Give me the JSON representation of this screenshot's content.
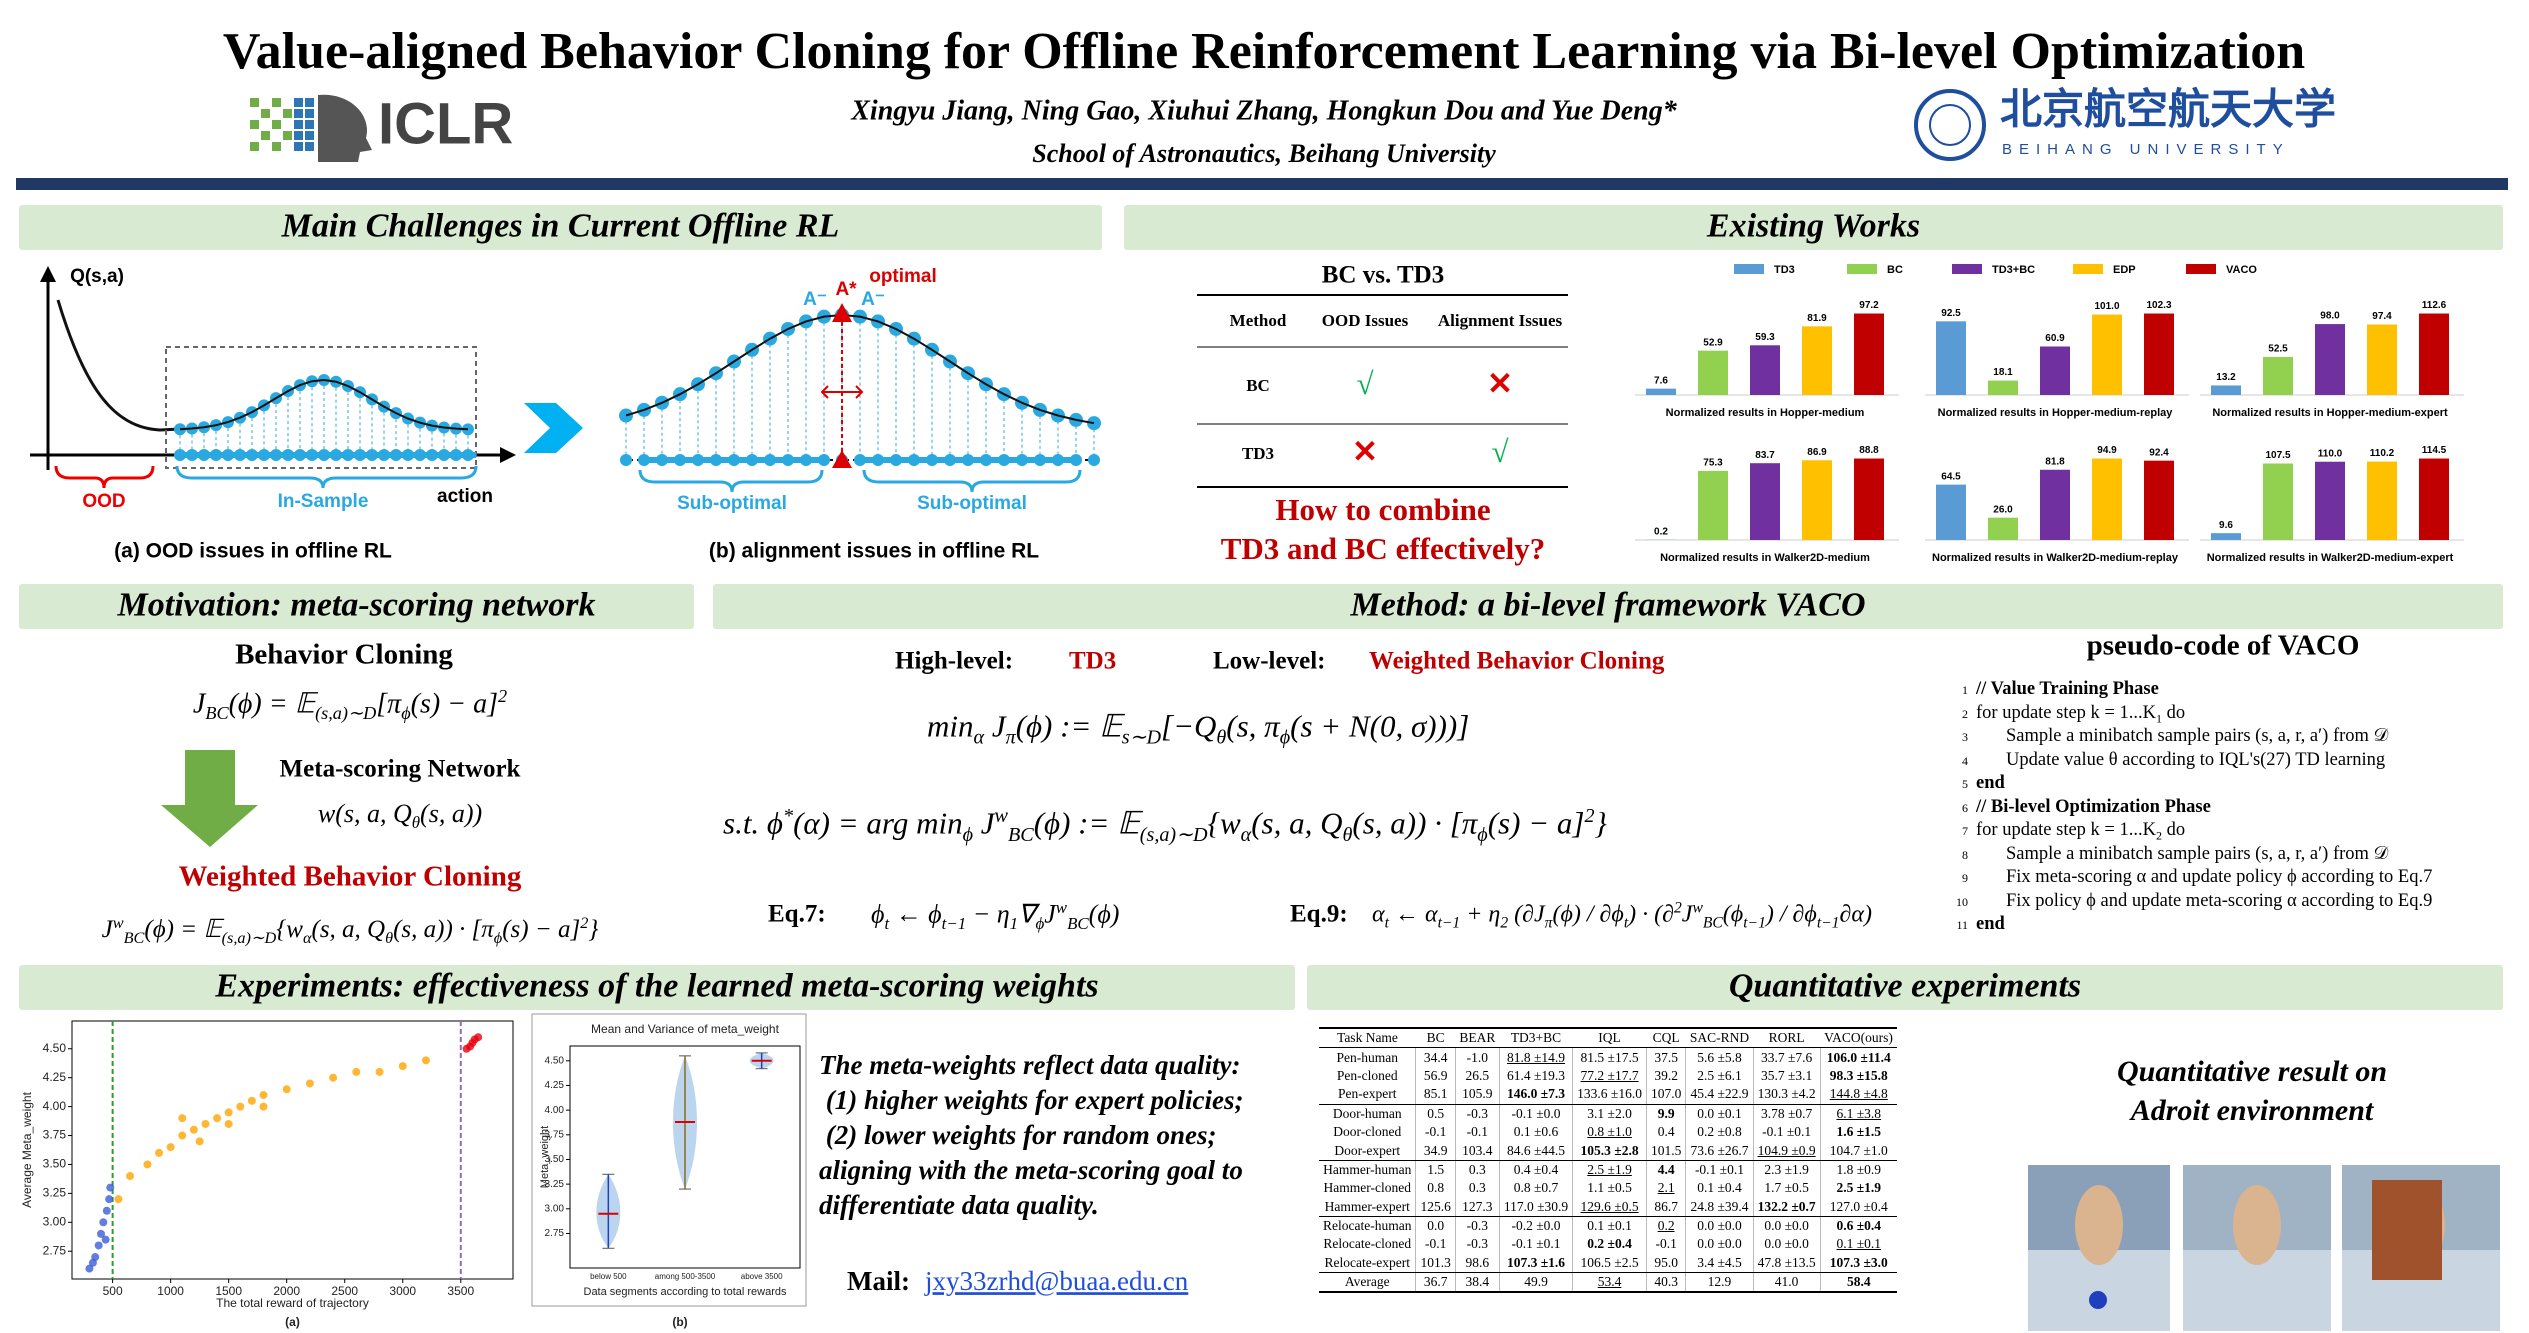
{
  "header": {
    "title": "Value-aligned Behavior Cloning for Offline Reinforcement Learning via Bi-level Optimization",
    "authors": "Xingyu Jiang, Ning Gao, Xiuhui Zhang, Hongkun Dou and Yue Deng*",
    "affiliation": "School of Astronautics, Beihang University",
    "conference": "ICLR",
    "university_cn": "北京航空航天大学",
    "university_en": "BEIHANG UNIVERSITY"
  },
  "challenges": {
    "title": "Main Challenges in Current Offline RL",
    "fig_a": {
      "y_label": "Q(s,a)",
      "x_label": "action",
      "ood": "OOD",
      "in_sample": "In-Sample",
      "caption": "(a) OOD issues in offline RL"
    },
    "fig_b": {
      "optimal": "optimal",
      "a_star": "A*",
      "a_minus": [
        "A⁻",
        "A⁻"
      ],
      "sub_optimal": [
        "Sub-optimal",
        "Sub-optimal"
      ],
      "caption": "(b) alignment issues in offline RL"
    }
  },
  "existing": {
    "title": "Existing Works",
    "table": {
      "title": "BC vs. TD3",
      "header": [
        "Method",
        "OOD Issues",
        "Alignment Issues"
      ],
      "rows": [
        [
          "BC",
          "√",
          "✕"
        ],
        [
          "TD3",
          "✕",
          "√"
        ]
      ]
    },
    "question": [
      "How to combine",
      "TD3 and BC effectively?"
    ],
    "legend": [
      {
        "name": "TD3",
        "color": "#5b9bd5"
      },
      {
        "name": "BC",
        "color": "#92d050"
      },
      {
        "name": "TD3+BC",
        "color": "#7030a0"
      },
      {
        "name": "EDP",
        "color": "#ffc000"
      },
      {
        "name": "VACO",
        "color": "#c00000"
      }
    ]
  },
  "motivation": {
    "title": "Motivation: meta-scoring network",
    "bc": "Behavior Cloning",
    "bc_formula": "J_{BC}(ϕ) = 𝔼_{(s,a)∼D}[π_{ϕ}(s) − a]^{2}",
    "network": "Meta-scoring Network",
    "network_formula": "w(s, a, Q_{θ}(s, a))",
    "wbc": "Weighted Behavior Cloning",
    "wbc_formula": "J^{w}_{BC}(ϕ) = 𝔼_{(s,a)∼D}{w_{α}(s, a, Q_{θ}(s, a)) · [π_{ϕ}(s) − a]^{2}}"
  },
  "method": {
    "title": "Method: a bi-level framework VACO",
    "high_label": "High-level:",
    "high": "TD3",
    "low_label": "Low-level:",
    "low": "Weighted Behavior Cloning",
    "upper": "min_{α}    J_{π}(ϕ) := 𝔼_{s∼D}[−Q_{θ}(s, π_{ϕ}(s + N(0, σ)))]",
    "lower": "s.t. ϕ^{*}(α) = arg min_{ϕ} J^{w}_{BC}(ϕ) := 𝔼_{(s,a)∼D}{w_{α}(s, a, Q_{θ}(s, a)) · [π_{ϕ}(s) − a]^{2}}",
    "eq7_label": "Eq.7:",
    "eq7": "ϕ_{t} ← ϕ_{t−1} − η_{1}∇_{ϕ}J^{w}_{BC}(ϕ)",
    "eq9_label": "Eq.9:",
    "eq9": "α_{t} ← α_{t−1} + η_{2} (∂J_{π}(ϕ) / ∂ϕ_{t}) · (∂^{2}J^{w}_{BC}(ϕ_{t−1}) / ∂ϕ_{t−1}∂α)",
    "code_title": "pseudo-code of VACO",
    "code": [
      {
        "num": 1,
        "text": "// Value Training Phase",
        "indent": 0,
        "bold": true
      },
      {
        "num": 2,
        "text": "for update step k = 1...K_{1} do",
        "indent": 0,
        "bold": false
      },
      {
        "num": 3,
        "text": "Sample a minibatch sample pairs (s, a, r, a′) from 𝒟",
        "indent": 1,
        "bold": false
      },
      {
        "num": 4,
        "text": "Update value θ according to IQL's(27) TD learning",
        "indent": 1,
        "bold": false
      },
      {
        "num": 5,
        "text": "end",
        "indent": 0,
        "bold": true
      },
      {
        "num": 6,
        "text": "// Bi-level Optimization Phase",
        "indent": 0,
        "bold": true
      },
      {
        "num": 7,
        "text": "for update step k = 1...K_{2} do",
        "indent": 0,
        "bold": false
      },
      {
        "num": 8,
        "text": "Sample a minibatch sample pairs (s, a, r, a′) from 𝒟",
        "indent": 1,
        "bold": false
      },
      {
        "num": 9,
        "text": "Fix meta-scoring α and update policy ϕ according to Eq.7",
        "indent": 1,
        "bold": false
      },
      {
        "num": 10,
        "text": "Fix policy ϕ and update meta-scoring α according to Eq.9",
        "indent": 1,
        "bold": false
      },
      {
        "num": 11,
        "text": "end",
        "indent": 0,
        "bold": true
      }
    ]
  },
  "experiments": {
    "title": "Experiments: effectiveness of the learned meta-scoring weights",
    "text": [
      "The meta-weights reflect data quality:",
      " (1) higher weights for expert policies;",
      " (2) lower weights for random ones;",
      "aligning with the meta-scoring goal to",
      "differentiate data quality."
    ],
    "mail_label": "Mail:",
    "mail": "jxy33zrhd@buaa.edu.cn",
    "captions": [
      "(a)",
      "(b)"
    ]
  },
  "quantitative": {
    "title": "Quantitative experiments",
    "note": [
      "Quantitative result on",
      "Adroit environment"
    ],
    "table": {
      "header": [
        "Task Name",
        "BC",
        "BEAR",
        "TD3+BC",
        "IQL",
        "CQL",
        "SAC-RND",
        "RORL",
        "VACO(ours)"
      ],
      "rows": [
        [
          "Pen-human",
          "34.4",
          "-1.0",
          "81.8 ±14.9",
          "81.5 ±17.5",
          "37.5",
          "5.6 ±5.8",
          "33.7 ±7.6",
          "106.0 ±11.4"
        ],
        [
          "Pen-cloned",
          "56.9",
          "26.5",
          "61.4 ±19.3",
          "77.2 ±17.7",
          "39.2",
          "2.5 ±6.1",
          "35.7 ±3.1",
          "98.3 ±15.8"
        ],
        [
          "Pen-expert",
          "85.1",
          "105.9",
          "146.0 ±7.3",
          "133.6 ±16.0",
          "107.0",
          "45.4 ±22.9",
          "130.3 ±4.2",
          "144.8 ±4.8"
        ],
        [
          "Door-human",
          "0.5",
          "-0.3",
          "-0.1 ±0.0",
          "3.1 ±2.0",
          "9.9",
          "0.0 ±0.1",
          "3.78 ±0.7",
          "6.1 ±3.8"
        ],
        [
          "Door-cloned",
          "-0.1",
          "-0.1",
          "0.1 ±0.6",
          "0.8 ±1.0",
          "0.4",
          "0.2 ±0.8",
          "-0.1 ±0.1",
          "1.6 ±1.5"
        ],
        [
          "Door-expert",
          "34.9",
          "103.4",
          "84.6 ±44.5",
          "105.3 ±2.8",
          "101.5",
          "73.6 ±26.7",
          "104.9 ±0.9",
          "104.7 ±1.0"
        ],
        [
          "Hammer-human",
          "1.5",
          "0.3",
          "0.4 ±0.4",
          "2.5 ±1.9",
          "4.4",
          "-0.1 ±0.1",
          "2.3 ±1.9",
          "1.8 ±0.9"
        ],
        [
          "Hammer-cloned",
          "0.8",
          "0.3",
          "0.8 ±0.7",
          "1.1 ±0.5",
          "2.1",
          "0.1 ±0.4",
          "1.7 ±0.5",
          "2.5 ±1.9"
        ],
        [
          "Hammer-expert",
          "125.6",
          "127.3",
          "117.0 ±30.9",
          "129.6 ±0.5",
          "86.7",
          "24.8 ±39.4",
          "132.2 ±0.7",
          "127.0 ±0.4"
        ],
        [
          "Relocate-human",
          "0.0",
          "-0.3",
          "-0.2 ±0.0",
          "0.1 ±0.1",
          "0.2",
          "0.0 ±0.0",
          "0.0 ±0.0",
          "0.6 ±0.4"
        ],
        [
          "Relocate-cloned",
          "-0.1",
          "-0.3",
          "-0.1 ±0.1",
          "0.2 ±0.4",
          "-0.1",
          "0.0 ±0.0",
          "0.0 ±0.0",
          "0.1 ±0.1"
        ],
        [
          "Relocate-expert",
          "101.3",
          "98.6",
          "107.3 ±1.6",
          "106.5 ±2.5",
          "95.0",
          "3.4 ±4.5",
          "47.8 ±13.5",
          "107.3 ±3.0"
        ],
        [
          "Average",
          "36.7",
          "38.4",
          "49.9",
          "53.4",
          "40.3",
          "12.9",
          "41.0",
          "58.4"
        ]
      ],
      "bold": [
        [
          0,
          8
        ],
        [
          1,
          8
        ],
        [
          2,
          3
        ],
        [
          3,
          5
        ],
        [
          4,
          8
        ],
        [
          5,
          4
        ],
        [
          6,
          5
        ],
        [
          7,
          8
        ],
        [
          8,
          7
        ],
        [
          9,
          8
        ],
        [
          10,
          4
        ],
        [
          11,
          3
        ],
        [
          11,
          8
        ],
        [
          12,
          8
        ]
      ],
      "underline": [
        [
          0,
          3
        ],
        [
          1,
          4
        ],
        [
          2,
          8
        ],
        [
          3,
          8
        ],
        [
          4,
          4
        ],
        [
          5,
          7
        ],
        [
          6,
          4
        ],
        [
          7,
          5
        ],
        [
          8,
          4
        ],
        [
          9,
          5
        ],
        [
          10,
          8
        ],
        [
          12,
          4
        ]
      ],
      "group_size": 3
    }
  },
  "chart_data": [
    {
      "type": "bar",
      "title": "Normalized results in Hopper-medium",
      "values": [
        7.6,
        52.9,
        59.3,
        81.9,
        97.2
      ]
    },
    {
      "type": "bar",
      "title": "Normalized results in Hopper-medium-replay",
      "values": [
        92.5,
        18.1,
        60.9,
        101,
        102.3
      ],
      "value_labels": [
        "92.5",
        "18.1",
        "60.9",
        "101.0",
        "102.3"
      ]
    },
    {
      "type": "bar",
      "title": "Normalized results in Hopper-medium-expert",
      "values": [
        13.2,
        52.5,
        98,
        97.4,
        112.6
      ],
      "value_labels": [
        "13.2",
        "52.5",
        "98.0",
        "97.4",
        "112.6"
      ]
    },
    {
      "type": "bar",
      "title": "Normalized results in Walker2D-medium",
      "values": [
        0.2,
        75.3,
        83.7,
        86.9,
        88.8
      ]
    },
    {
      "type": "bar",
      "title": "Normalized results in Walker2D-medium-replay",
      "values": [
        64.5,
        26,
        81.8,
        94.9,
        92.4
      ],
      "value_labels": [
        "64.5",
        "26.0",
        "81.8",
        "94.9",
        "92.4"
      ]
    },
    {
      "type": "bar",
      "title": "Normalized results in Walker2D-medium-expert",
      "values": [
        9.6,
        107.5,
        110,
        110.2,
        114.5
      ],
      "value_labels": [
        "9.6",
        "107.5",
        "110.0",
        "110.2",
        "114.5"
      ]
    },
    {
      "type": "scatter",
      "x_label": "The total reward of trajectory",
      "y_label": "Average Meta_weight",
      "xlim": [
        150,
        3950
      ],
      "ylim": [
        2.51,
        4.74
      ],
      "xticks": [
        500,
        1000,
        1500,
        2000,
        2500,
        3000,
        3500
      ],
      "yticks": [
        2.75,
        {
          "value": 3,
          "label": "3.00"
        },
        3.25,
        {
          "value": 3.5,
          "label": "3.50"
        },
        3.75,
        {
          "value": 4,
          "label": "4.00"
        },
        4.25,
        {
          "value": 4.5,
          "label": "4.50"
        }
      ],
      "vlines": [
        {
          "value": 500,
          "color": "#2ca02c"
        },
        {
          "value": 3500,
          "color": "#9467bd"
        }
      ],
      "series": [
        {
          "color": "#3b5bdb",
          "x": [
            300,
            330,
            350,
            380,
            400,
            420,
            440,
            450,
            470,
            480
          ],
          "values": [
            2.6,
            2.65,
            2.7,
            2.8,
            2.9,
            3.0,
            2.85,
            3.1,
            3.2,
            3.3
          ]
        },
        {
          "color": "#ffa500",
          "x": [
            550,
            650,
            800,
            900,
            1000,
            1100,
            1100,
            1200,
            1250,
            1300,
            1400,
            1500,
            1500,
            1600,
            1700,
            1800,
            1800,
            2000,
            2200,
            2400,
            2600,
            2800,
            3000,
            3200
          ],
          "values": [
            3.2,
            3.4,
            3.5,
            3.6,
            3.65,
            3.75,
            3.9,
            3.8,
            3.7,
            3.85,
            3.9,
            3.95,
            3.85,
            4.0,
            4.05,
            4.1,
            4.0,
            4.15,
            4.2,
            4.25,
            4.3,
            4.3,
            4.35,
            4.4
          ]
        },
        {
          "color": "#e8000b",
          "x": [
            3550,
            3580,
            3600,
            3620,
            3650
          ],
          "values": [
            4.5,
            4.52,
            4.55,
            4.58,
            4.6
          ]
        }
      ]
    },
    {
      "type": "violin",
      "title": "Mean and Variance of meta_weight",
      "x_label": "Data segments according to total rewards",
      "y_label": "Meta_weight",
      "categories": [
        "below 500",
        "among 500-3500",
        "above 3500"
      ],
      "ylim": [
        2.4,
        4.65
      ],
      "yticks": [
        2.75,
        {
          "value": 3,
          "label": "3.00"
        },
        3.25,
        {
          "value": 3.5,
          "label": "3.50"
        },
        3.75,
        {
          "value": 4,
          "label": "4.00"
        },
        4.25,
        {
          "value": 4.5,
          "label": "4.50"
        }
      ],
      "means": [
        2.95,
        3.88,
        4.5
      ],
      "mins": [
        2.6,
        3.2,
        4.42
      ],
      "maxs": [
        3.35,
        4.55,
        4.58
      ]
    }
  ]
}
